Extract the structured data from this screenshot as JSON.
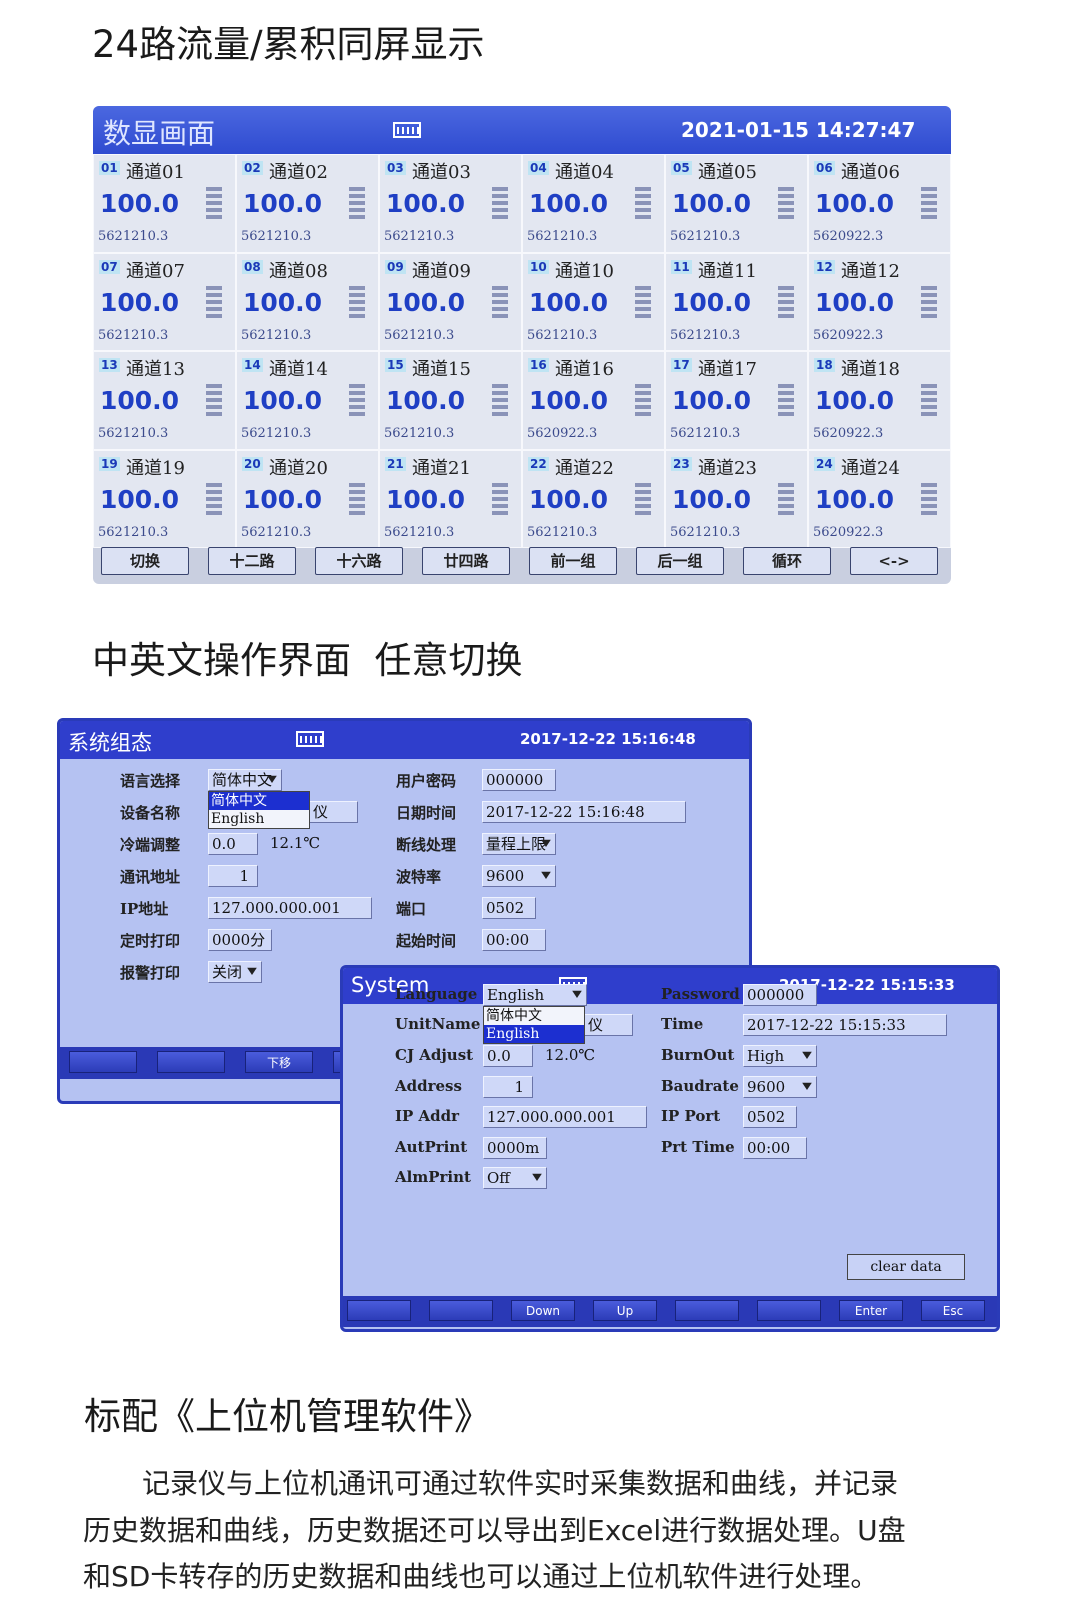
{
  "sections": [
    {
      "title": "24路流量/累积同屏显示"
    },
    {
      "title": "中英文操作界面  任意切换"
    },
    {
      "title": "标配《上位机管理软件》"
    }
  ],
  "display_screen": {
    "title": "数显画面",
    "datetime": "2021-01-15 14:27:47",
    "channels": [
      {
        "number": "01",
        "name": "通道01",
        "value": "100.0",
        "total": "5621210.3"
      },
      {
        "number": "02",
        "name": "通道02",
        "value": "100.0",
        "total": "5621210.3"
      },
      {
        "number": "03",
        "name": "通道03",
        "value": "100.0",
        "total": "5621210.3"
      },
      {
        "number": "04",
        "name": "通道04",
        "value": "100.0",
        "total": "5621210.3"
      },
      {
        "number": "05",
        "name": "通道05",
        "value": "100.0",
        "total": "5621210.3"
      },
      {
        "number": "06",
        "name": "通道06",
        "value": "100.0",
        "total": "5620922.3"
      },
      {
        "number": "07",
        "name": "通道07",
        "value": "100.0",
        "total": "5621210.3"
      },
      {
        "number": "08",
        "name": "通道08",
        "value": "100.0",
        "total": "5621210.3"
      },
      {
        "number": "09",
        "name": "通道09",
        "value": "100.0",
        "total": "5621210.3"
      },
      {
        "number": "10",
        "name": "通道10",
        "value": "100.0",
        "total": "5621210.3"
      },
      {
        "number": "11",
        "name": "通道11",
        "value": "100.0",
        "total": "5621210.3"
      },
      {
        "number": "12",
        "name": "通道12",
        "value": "100.0",
        "total": "5620922.3"
      },
      {
        "number": "13",
        "name": "通道13",
        "value": "100.0",
        "total": "5621210.3"
      },
      {
        "number": "14",
        "name": "通道14",
        "value": "100.0",
        "total": "5621210.3"
      },
      {
        "number": "15",
        "name": "通道15",
        "value": "100.0",
        "total": "5621210.3"
      },
      {
        "number": "16",
        "name": "通道16",
        "value": "100.0",
        "total": "5620922.3"
      },
      {
        "number": "17",
        "name": "通道17",
        "value": "100.0",
        "total": "5621210.3"
      },
      {
        "number": "18",
        "name": "通道18",
        "value": "100.0",
        "total": "5620922.3"
      },
      {
        "number": "19",
        "name": "通道19",
        "value": "100.0",
        "total": "5621210.3"
      },
      {
        "number": "20",
        "name": "通道20",
        "value": "100.0",
        "total": "5621210.3"
      },
      {
        "number": "21",
        "name": "通道21",
        "value": "100.0",
        "total": "5621210.3"
      },
      {
        "number": "22",
        "name": "通道22",
        "value": "100.0",
        "total": "5621210.3"
      },
      {
        "number": "23",
        "name": "通道23",
        "value": "100.0",
        "total": "5621210.3"
      },
      {
        "number": "24",
        "name": "通道24",
        "value": "100.0",
        "total": "5620922.3"
      }
    ],
    "buttons": [
      "切换",
      "十二路",
      "十六路",
      "廿四路",
      "前一组",
      "后一组",
      "循环",
      "<->"
    ]
  },
  "config_screen_cn": {
    "title": "系统组态",
    "datetime": "2017-12-22 15:16:48",
    "left_fields": [
      {
        "label": "语言选择",
        "value": "简体中文",
        "dropdown": true
      },
      {
        "label": "设备名称",
        "value": "仪"
      },
      {
        "label": "冷端调整",
        "value": "0.0",
        "extra": "12.1℃"
      },
      {
        "label": "通讯地址",
        "value": "1"
      },
      {
        "label": "IP地址",
        "value": "127.000.000.001"
      },
      {
        "label": "定时打印",
        "value": "0000分"
      },
      {
        "label": "报警打印",
        "value": "关闭",
        "dropdown": true
      }
    ],
    "right_fields": [
      {
        "label": "用户密码",
        "value": "000000"
      },
      {
        "label": "日期时间",
        "value": "2017-12-22 15:16:48"
      },
      {
        "label": "断线处理",
        "value": "量程上限",
        "dropdown": true
      },
      {
        "label": "波特率",
        "value": "9600",
        "dropdown": true
      },
      {
        "label": "端口",
        "value": "0502"
      },
      {
        "label": "起始时间",
        "value": "00:00"
      }
    ],
    "dropdown": {
      "options": [
        "简体中文",
        "English"
      ],
      "selected": 0
    },
    "buttons": [
      null,
      null,
      "下移",
      null
    ]
  },
  "config_screen_en": {
    "title": "System",
    "datetime": "2017-12-22 15:15:33",
    "left_fields": [
      {
        "label": "Language",
        "value": "English",
        "dropdown": true
      },
      {
        "label": "UnitName",
        "value": "仪"
      },
      {
        "label": "CJ Adjust",
        "value": "0.0",
        "extra": "12.0℃"
      },
      {
        "label": "Address",
        "value": "1"
      },
      {
        "label": "IP Addr",
        "value": "127.000.000.001"
      },
      {
        "label": "AutPrint",
        "value": "0000m"
      },
      {
        "label": "AlmPrint",
        "value": "Off",
        "dropdown": true
      }
    ],
    "right_fields": [
      {
        "label": "Password",
        "value": "000000"
      },
      {
        "label": "Time",
        "value": "2017-12-22 15:15:33"
      },
      {
        "label": "BurnOut",
        "value": "High",
        "dropdown": true
      },
      {
        "label": "Baudrate",
        "value": "9600",
        "dropdown": true
      },
      {
        "label": "IP Port",
        "value": "0502"
      },
      {
        "label": "Prt Time",
        "value": "00:00"
      }
    ],
    "dropdown": {
      "options": [
        "简体中文",
        "English"
      ],
      "selected": 1
    },
    "clear_button": "clear data",
    "buttons": [
      null,
      null,
      "Down",
      "Up",
      null,
      null,
      "Enter",
      "Esc"
    ]
  },
  "description": {
    "lines": [
      "记录仪与上位机通讯可通过软件实时采集数据和曲线，并记录",
      "历史数据和曲线，历史数据还可以导出到Excel进行数据处理。U盘",
      "和SD卡转存的历史数据和曲线也可以通过上位机软件进行处理。"
    ]
  }
}
